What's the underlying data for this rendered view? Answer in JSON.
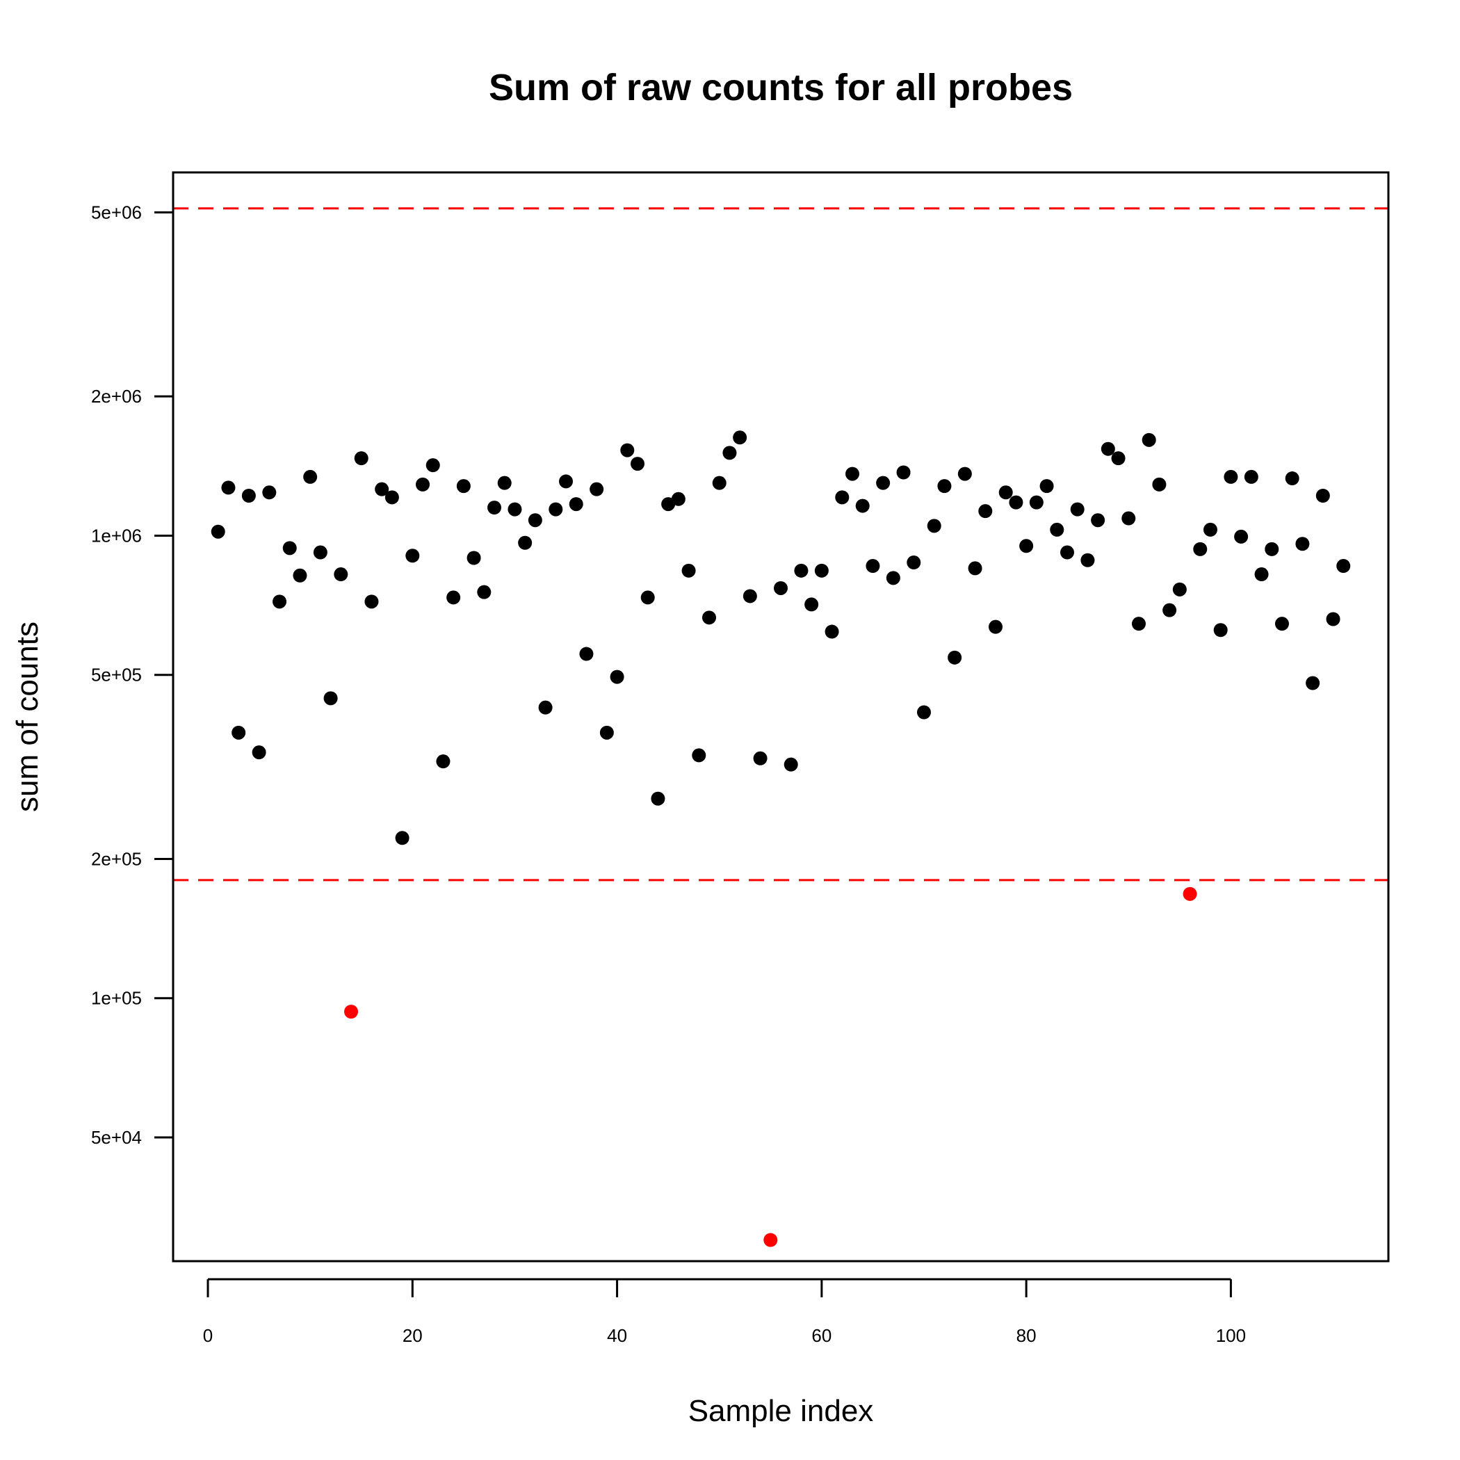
{
  "chart_data": {
    "type": "scatter",
    "title": "Sum of raw counts for all probes",
    "xlabel": "Sample index",
    "ylabel": "sum of counts",
    "log_y": true,
    "xlim": [
      -3.4,
      115.4
    ],
    "ylim": [
      27000,
      6100000
    ],
    "x_ticks": [
      {
        "value": 0,
        "label": "0"
      },
      {
        "value": 20,
        "label": "20"
      },
      {
        "value": 40,
        "label": "40"
      },
      {
        "value": 60,
        "label": "60"
      },
      {
        "value": 80,
        "label": "80"
      },
      {
        "value": 100,
        "label": "100"
      }
    ],
    "y_ticks": [
      {
        "value": 50000,
        "label": "5e+04"
      },
      {
        "value": 100000,
        "label": "1e+05"
      },
      {
        "value": 200000,
        "label": "2e+05"
      },
      {
        "value": 500000,
        "label": "5e+05"
      },
      {
        "value": 1000000,
        "label": "1e+06"
      },
      {
        "value": 2000000,
        "label": "2e+06"
      },
      {
        "value": 5000000,
        "label": "5e+06"
      }
    ],
    "thresholds": [
      {
        "value": 5100000,
        "color": "#ff0000",
        "style": "dashed"
      },
      {
        "value": 180000,
        "color": "#ff0000",
        "style": "dashed"
      }
    ],
    "colors": {
      "normal": "#000000",
      "outlier": "#ff0000"
    },
    "series": [
      {
        "color": "#000000",
        "x": [
          1,
          2,
          3,
          4,
          5,
          6,
          7,
          8,
          9,
          10,
          11,
          12,
          13,
          15,
          16,
          17,
          18,
          19,
          20,
          21,
          22,
          23,
          24,
          25,
          26,
          27,
          28,
          29,
          30,
          31,
          32,
          33,
          34,
          35,
          36,
          37,
          38,
          39,
          40,
          41,
          42,
          43,
          44,
          45,
          46,
          47,
          48,
          49,
          50,
          51,
          52,
          53,
          54,
          56,
          57,
          58,
          59,
          60,
          61,
          62,
          63,
          64,
          65,
          66,
          67,
          68,
          69,
          70,
          71,
          72,
          73,
          74,
          75,
          76,
          77,
          78,
          79,
          80,
          81,
          82,
          83,
          84,
          85,
          86,
          87,
          88,
          89,
          90,
          91,
          92,
          93,
          94,
          95,
          97,
          98,
          99,
          100,
          101,
          102,
          103,
          104,
          105,
          106,
          107,
          108,
          109,
          110,
          111
        ],
        "y": [
          1020000,
          1270000,
          375000,
          1220000,
          340000,
          1240000,
          720000,
          940000,
          820000,
          1340000,
          920000,
          445000,
          825000,
          1470000,
          720000,
          1260000,
          1210000,
          222000,
          905000,
          1290000,
          1420000,
          325000,
          735000,
          1280000,
          895000,
          755000,
          1150000,
          1300000,
          1140000,
          965000,
          1080000,
          425000,
          1140000,
          1310000,
          1170000,
          555000,
          1260000,
          375000,
          495000,
          1530000,
          1430000,
          735000,
          270000,
          1170000,
          1200000,
          840000,
          335000,
          665000,
          1300000,
          1510000,
          1630000,
          740000,
          330000,
          770000,
          320000,
          840000,
          710000,
          840000,
          620000,
          1210000,
          1360000,
          1160000,
          860000,
          1300000,
          810000,
          1370000,
          875000,
          415000,
          1050000,
          1280000,
          545000,
          1360000,
          850000,
          1130000,
          635000,
          1240000,
          1180000,
          950000,
          1180000,
          1280000,
          1030000,
          920000,
          1140000,
          885000,
          1080000,
          1540000,
          1470000,
          1090000,
          645000,
          1610000,
          1290000,
          690000,
          765000,
          935000,
          1030000,
          625000,
          1340000,
          995000,
          1340000,
          825000,
          935000,
          645000,
          1330000,
          960000,
          480000,
          1220000,
          660000,
          860000
        ]
      },
      {
        "color": "#ff0000",
        "x": [
          14,
          55,
          96
        ],
        "y": [
          93500,
          30000,
          168000
        ]
      }
    ]
  }
}
